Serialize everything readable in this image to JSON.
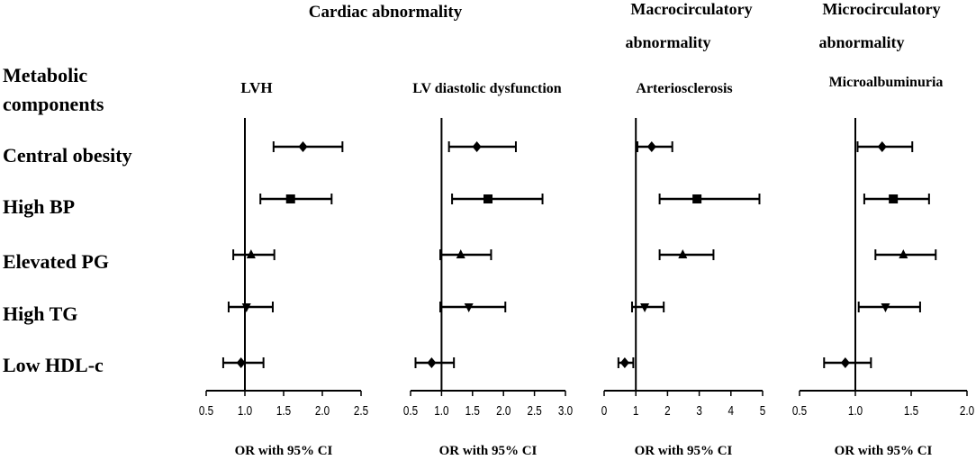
{
  "metabolic_header": [
    "Metabolic",
    "components"
  ],
  "group_titles": [
    {
      "lines": [
        "Cardiac  abnormality"
      ]
    },
    {
      "lines": [
        "Macrocirculatory",
        "abnormality"
      ]
    },
    {
      "lines": [
        "Microcirculatory",
        "abnormality"
      ]
    }
  ],
  "chart_data": {
    "type": "forest",
    "rows": [
      "Central obesity",
      "High BP",
      "Elevated PG",
      "High TG",
      "Low HDL-c"
    ],
    "marker_shapes": [
      "diamond",
      "square",
      "triangle-up",
      "triangle-down",
      "diamond"
    ],
    "panels": [
      {
        "title": "LVH",
        "group": "Cardiac  abnormality",
        "xlabel": "OR with  95% CI",
        "xlim": [
          0.5,
          2.5
        ],
        "ref_line": 1.0,
        "ticks": [
          0.5,
          1.0,
          1.5,
          2.0,
          2.5
        ],
        "tick_labels": [
          "0.5",
          "1.0",
          "1.5",
          "2.0",
          "2.5"
        ],
        "series": [
          {
            "row": "Central obesity",
            "or": 1.75,
            "lo": 1.37,
            "hi": 2.26
          },
          {
            "row": "High BP",
            "or": 1.59,
            "lo": 1.2,
            "hi": 2.12
          },
          {
            "row": "Elevated PG",
            "or": 1.08,
            "lo": 0.85,
            "hi": 1.38
          },
          {
            "row": "High TG",
            "or": 1.02,
            "lo": 0.79,
            "hi": 1.36
          },
          {
            "row": "Low HDL-c",
            "or": 0.95,
            "lo": 0.72,
            "hi": 1.24
          }
        ]
      },
      {
        "title": "LV diastolic dysfunction",
        "group": "Cardiac  abnormality",
        "xlabel": "OR with  95% CI",
        "xlim": [
          0.5,
          3.0
        ],
        "ref_line": 1.0,
        "ticks": [
          0.5,
          1.0,
          1.5,
          2.0,
          2.5,
          3.0
        ],
        "tick_labels": [
          "0.5",
          "1.0",
          "1.5",
          "2.0",
          "2.5",
          "3.0"
        ],
        "series": [
          {
            "row": "Central obesity",
            "or": 1.57,
            "lo": 1.12,
            "hi": 2.2
          },
          {
            "row": "High BP",
            "or": 1.75,
            "lo": 1.17,
            "hi": 2.63
          },
          {
            "row": "Elevated PG",
            "or": 1.31,
            "lo": 0.98,
            "hi": 1.8
          },
          {
            "row": "High TG",
            "or": 1.44,
            "lo": 0.98,
            "hi": 2.03
          },
          {
            "row": "Low HDL-c",
            "or": 0.84,
            "lo": 0.58,
            "hi": 1.2
          }
        ]
      },
      {
        "title": "Arteriosclerosis",
        "group": "Macrocirculatory abnormality",
        "xlabel": "OR with  95% CI",
        "xlim": [
          0,
          5
        ],
        "ref_line": 1,
        "ticks": [
          0,
          1,
          2,
          3,
          4,
          5
        ],
        "tick_labels": [
          "0",
          "1",
          "2",
          "3",
          "4",
          "5"
        ],
        "series": [
          {
            "row": "Central obesity",
            "or": 1.5,
            "lo": 1.05,
            "hi": 2.15
          },
          {
            "row": "High BP",
            "or": 2.93,
            "lo": 1.75,
            "hi": 4.9
          },
          {
            "row": "Elevated PG",
            "or": 2.48,
            "lo": 1.75,
            "hi": 3.45
          },
          {
            "row": "High TG",
            "or": 1.28,
            "lo": 0.88,
            "hi": 1.88
          },
          {
            "row": "Low HDL-c",
            "or": 0.65,
            "lo": 0.45,
            "hi": 0.92
          }
        ]
      },
      {
        "title": "Microalbuminuria",
        "group": "Microcirculatory abnormality",
        "xlabel": "OR with  95% CI",
        "xlim": [
          0.5,
          2.0
        ],
        "ref_line": 1.0,
        "ticks": [
          0.5,
          1.0,
          1.5,
          2.0
        ],
        "tick_labels": [
          "0.5",
          "1.0",
          "1.5",
          "2.0"
        ],
        "series": [
          {
            "row": "Central obesity",
            "or": 1.24,
            "lo": 1.02,
            "hi": 1.51
          },
          {
            "row": "High BP",
            "or": 1.34,
            "lo": 1.08,
            "hi": 1.66
          },
          {
            "row": "Elevated PG",
            "or": 1.43,
            "lo": 1.18,
            "hi": 1.72
          },
          {
            "row": "High TG",
            "or": 1.27,
            "lo": 1.03,
            "hi": 1.58
          },
          {
            "row": "Low HDL-c",
            "or": 0.91,
            "lo": 0.72,
            "hi": 1.14
          }
        ]
      }
    ]
  }
}
